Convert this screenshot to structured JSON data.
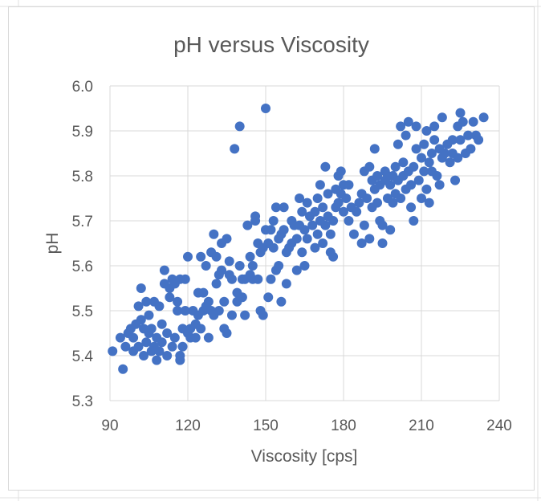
{
  "chart_data": {
    "type": "scatter",
    "title": "pH versus Viscosity",
    "xlabel": "Viscosity [cps]",
    "ylabel": "pH",
    "xlim": [
      90,
      240
    ],
    "ylim": [
      5.3,
      6.0
    ],
    "x_ticks": [
      90,
      120,
      150,
      180,
      210,
      240
    ],
    "y_ticks": [
      5.3,
      5.4,
      5.5,
      5.6,
      5.7,
      5.8,
      5.9,
      6.0
    ],
    "x_tick_labels": [
      "90",
      "120",
      "150",
      "180",
      "210",
      "240"
    ],
    "y_tick_labels": [
      "5.3",
      "5.4",
      "5.5",
      "5.6",
      "5.7",
      "5.8",
      "5.9",
      "6.0"
    ],
    "grid": true,
    "legend": "none",
    "marker_color": "#4472C4",
    "gridline_color": "#d9d9d9",
    "series": [
      {
        "points": [
          [
            91,
            5.41
          ],
          [
            94,
            5.44
          ],
          [
            95,
            5.37
          ],
          [
            96,
            5.42
          ],
          [
            97,
            5.45
          ],
          [
            98,
            5.46
          ],
          [
            99,
            5.41
          ],
          [
            99,
            5.44
          ],
          [
            100,
            5.47
          ],
          [
            101,
            5.42
          ],
          [
            101,
            5.51
          ],
          [
            102,
            5.55
          ],
          [
            102,
            5.48
          ],
          [
            103,
            5.4
          ],
          [
            103,
            5.46
          ],
          [
            104,
            5.43
          ],
          [
            104,
            5.52
          ],
          [
            105,
            5.45
          ],
          [
            105,
            5.49
          ],
          [
            106,
            5.41
          ],
          [
            106,
            5.46
          ],
          [
            107,
            5.42
          ],
          [
            107,
            5.52
          ],
          [
            108,
            5.44
          ],
          [
            108,
            5.39
          ],
          [
            109,
            5.51
          ],
          [
            109,
            5.41
          ],
          [
            110,
            5.43
          ],
          [
            110,
            5.47
          ],
          [
            111,
            5.56
          ],
          [
            111,
            5.59
          ],
          [
            112,
            5.45
          ],
          [
            112,
            5.4
          ],
          [
            113,
            5.53
          ],
          [
            113,
            5.55
          ],
          [
            114,
            5.57
          ],
          [
            114,
            5.42
          ],
          [
            115,
            5.44
          ],
          [
            115,
            5.56
          ],
          [
            116,
            5.5
          ],
          [
            116,
            5.52
          ],
          [
            117,
            5.57
          ],
          [
            117,
            5.4
          ],
          [
            117,
            5.39
          ],
          [
            118,
            5.42
          ],
          [
            118,
            5.46
          ],
          [
            119,
            5.5
          ],
          [
            119,
            5.57
          ],
          [
            120,
            5.62
          ],
          [
            120,
            5.45
          ],
          [
            121,
            5.44
          ],
          [
            121,
            5.46
          ],
          [
            122,
            5.5
          ],
          [
            123,
            5.47
          ],
          [
            123,
            5.44
          ],
          [
            124,
            5.54
          ],
          [
            124,
            5.49
          ],
          [
            125,
            5.46
          ],
          [
            125,
            5.62
          ],
          [
            126,
            5.54
          ],
          [
            126,
            5.5
          ],
          [
            127,
            5.51
          ],
          [
            127,
            5.6
          ],
          [
            128,
            5.52
          ],
          [
            128,
            5.44
          ],
          [
            129,
            5.63
          ],
          [
            129,
            5.5
          ],
          [
            130,
            5.49
          ],
          [
            130,
            5.67
          ],
          [
            131,
            5.56
          ],
          [
            131,
            5.62
          ],
          [
            132,
            5.58
          ],
          [
            132,
            5.5
          ],
          [
            133,
            5.59
          ],
          [
            133,
            5.65
          ],
          [
            134,
            5.46
          ],
          [
            134,
            5.52
          ],
          [
            135,
            5.45
          ],
          [
            135,
            5.66
          ],
          [
            136,
            5.58
          ],
          [
            136,
            5.61
          ],
          [
            137,
            5.49
          ],
          [
            137,
            5.57
          ],
          [
            138,
            5.86
          ],
          [
            139,
            5.54
          ],
          [
            139,
            5.52
          ],
          [
            140,
            5.6
          ],
          [
            140,
            5.91
          ],
          [
            141,
            5.57
          ],
          [
            141,
            5.53
          ],
          [
            142,
            5.49
          ],
          [
            142,
            5.57
          ],
          [
            143,
            5.69
          ],
          [
            144,
            5.62
          ],
          [
            144,
            5.58
          ],
          [
            145,
            5.6
          ],
          [
            145,
            5.57
          ],
          [
            146,
            5.71
          ],
          [
            146,
            5.7
          ],
          [
            147,
            5.65
          ],
          [
            147,
            5.57
          ],
          [
            148,
            5.5
          ],
          [
            148,
            5.63
          ],
          [
            149,
            5.49
          ],
          [
            149,
            5.64
          ],
          [
            150,
            5.95
          ],
          [
            150,
            5.68
          ],
          [
            151,
            5.65
          ],
          [
            151,
            5.53
          ],
          [
            152,
            5.57
          ],
          [
            152,
            5.68
          ],
          [
            153,
            5.64
          ],
          [
            153,
            5.7
          ],
          [
            154,
            5.73
          ],
          [
            154,
            5.59
          ],
          [
            155,
            5.66
          ],
          [
            155,
            5.6
          ],
          [
            156,
            5.52
          ],
          [
            156,
            5.67
          ],
          [
            157,
            5.73
          ],
          [
            157,
            5.68
          ],
          [
            158,
            5.56
          ],
          [
            158,
            5.63
          ],
          [
            159,
            5.64
          ],
          [
            160,
            5.7
          ],
          [
            160,
            5.65
          ],
          [
            161,
            5.69
          ],
          [
            162,
            5.66
          ],
          [
            162,
            5.59
          ],
          [
            163,
            5.75
          ],
          [
            163,
            5.69
          ],
          [
            164,
            5.63
          ],
          [
            164,
            5.72
          ],
          [
            165,
            5.68
          ],
          [
            165,
            5.6
          ],
          [
            166,
            5.74
          ],
          [
            166,
            5.66
          ],
          [
            167,
            5.71
          ],
          [
            168,
            5.69
          ],
          [
            169,
            5.64
          ],
          [
            169,
            5.72
          ],
          [
            170,
            5.67
          ],
          [
            170,
            5.75
          ],
          [
            171,
            5.7
          ],
          [
            171,
            5.78
          ],
          [
            172,
            5.65
          ],
          [
            172,
            5.73
          ],
          [
            173,
            5.82
          ],
          [
            173,
            5.69
          ],
          [
            174,
            5.76
          ],
          [
            174,
            5.71
          ],
          [
            175,
            5.63
          ],
          [
            175,
            5.67
          ],
          [
            176,
            5.7
          ],
          [
            176,
            5.62
          ],
          [
            177,
            5.77
          ],
          [
            177,
            5.73
          ],
          [
            178,
            5.8
          ],
          [
            178,
            5.74
          ],
          [
            179,
            5.81
          ],
          [
            179,
            5.76
          ],
          [
            180,
            5.72
          ],
          [
            180,
            5.78
          ],
          [
            181,
            5.75
          ],
          [
            182,
            5.7
          ],
          [
            182,
            5.78
          ],
          [
            183,
            5.73
          ],
          [
            184,
            5.67
          ],
          [
            185,
            5.72
          ],
          [
            186,
            5.74
          ],
          [
            187,
            5.76
          ],
          [
            187,
            5.65
          ],
          [
            188,
            5.69
          ],
          [
            188,
            5.81
          ],
          [
            189,
            5.75
          ],
          [
            190,
            5.82
          ],
          [
            190,
            5.66
          ],
          [
            191,
            5.73
          ],
          [
            191,
            5.79
          ],
          [
            192,
            5.86
          ],
          [
            192,
            5.77
          ],
          [
            193,
            5.74
          ],
          [
            193,
            5.8
          ],
          [
            194,
            5.7
          ],
          [
            194,
            5.78
          ],
          [
            195,
            5.69
          ],
          [
            195,
            5.65
          ],
          [
            196,
            5.79
          ],
          [
            196,
            5.81
          ],
          [
            197,
            5.8
          ],
          [
            197,
            5.75
          ],
          [
            198,
            5.68
          ],
          [
            198,
            5.78
          ],
          [
            199,
            5.74
          ],
          [
            199,
            5.8
          ],
          [
            200,
            5.76
          ],
          [
            200,
            5.82
          ],
          [
            201,
            5.79
          ],
          [
            201,
            5.87
          ],
          [
            202,
            5.91
          ],
          [
            202,
            5.75
          ],
          [
            203,
            5.8
          ],
          [
            203,
            5.83
          ],
          [
            204,
            5.77
          ],
          [
            204,
            5.89
          ],
          [
            205,
            5.92
          ],
          [
            205,
            5.81
          ],
          [
            206,
            5.73
          ],
          [
            206,
            5.78
          ],
          [
            207,
            5.82
          ],
          [
            207,
            5.7
          ],
          [
            208,
            5.86
          ],
          [
            208,
            5.91
          ],
          [
            209,
            5.79
          ],
          [
            210,
            5.84
          ],
          [
            210,
            5.75
          ],
          [
            211,
            5.87
          ],
          [
            211,
            5.81
          ],
          [
            212,
            5.77
          ],
          [
            212,
            5.9
          ],
          [
            213,
            5.83
          ],
          [
            213,
            5.74
          ],
          [
            214,
            5.85
          ],
          [
            214,
            5.81
          ],
          [
            215,
            5.88
          ],
          [
            215,
            5.91
          ],
          [
            216,
            5.8
          ],
          [
            217,
            5.86
          ],
          [
            217,
            5.78
          ],
          [
            218,
            5.84
          ],
          [
            218,
            5.93
          ],
          [
            219,
            5.85
          ],
          [
            220,
            5.87
          ],
          [
            221,
            5.83
          ],
          [
            222,
            5.88
          ],
          [
            222,
            5.85
          ],
          [
            223,
            5.79
          ],
          [
            224,
            5.91
          ],
          [
            224,
            5.84
          ],
          [
            225,
            5.94
          ],
          [
            225,
            5.88
          ],
          [
            226,
            5.92
          ],
          [
            227,
            5.85
          ],
          [
            228,
            5.89
          ],
          [
            229,
            5.86
          ],
          [
            230,
            5.92
          ],
          [
            231,
            5.89
          ],
          [
            232,
            5.88
          ],
          [
            234,
            5.93
          ]
        ]
      }
    ]
  }
}
